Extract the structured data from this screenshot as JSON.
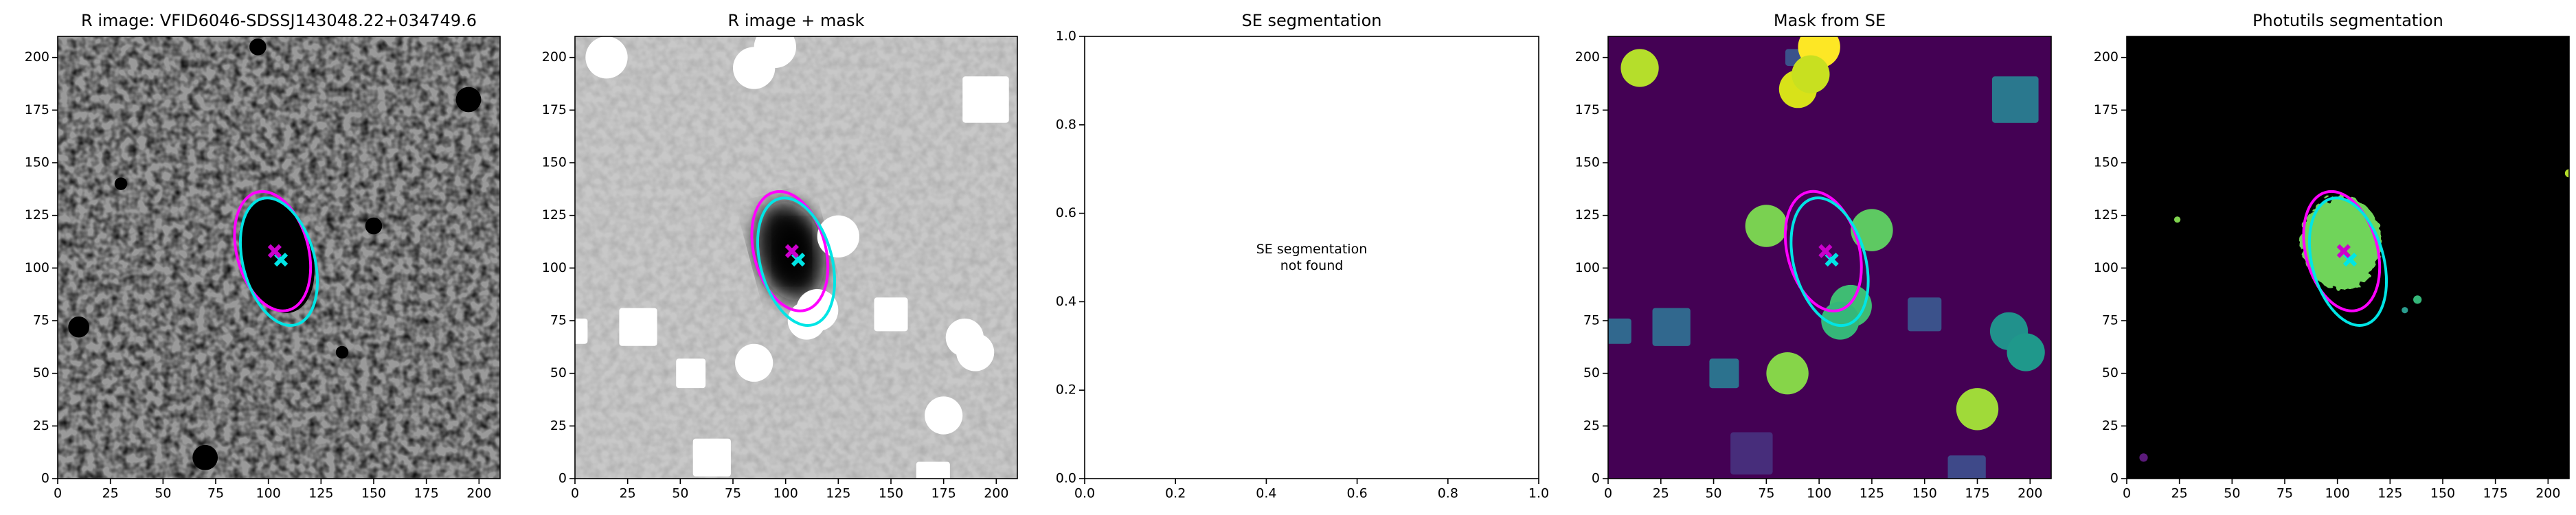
{
  "chart_data": [
    {
      "type": "image",
      "cmap": "gray",
      "title": "R image: VFID6046-SDSSJ143048.22+034749.6",
      "xlim": [
        0,
        210
      ],
      "ylim": [
        0,
        210
      ],
      "xticks": [
        0,
        25,
        50,
        75,
        100,
        125,
        150,
        175,
        200
      ],
      "yticks": [
        0,
        25,
        50,
        75,
        100,
        125,
        150,
        175,
        200
      ],
      "ellipses": [
        {
          "color": "#ff00ff",
          "x": 102,
          "y": 108,
          "width": 34,
          "height": 58,
          "angle": 15
        },
        {
          "color": "#00e5e5",
          "x": 105,
          "y": 103,
          "width": 34,
          "height": 62,
          "angle": 15
        }
      ],
      "markers": [
        {
          "color": "#00e5e5",
          "x": 106,
          "y": 104
        },
        {
          "color": "#cc00cc",
          "x": 103,
          "y": 108
        }
      ]
    },
    {
      "type": "image",
      "cmap": "gray_masked",
      "title": "R image + mask",
      "xlim": [
        0,
        210
      ],
      "ylim": [
        0,
        210
      ],
      "xticks": [
        0,
        25,
        50,
        75,
        100,
        125,
        150,
        175,
        200
      ],
      "yticks": [
        0,
        25,
        50,
        75,
        100,
        125,
        150,
        175,
        200
      ],
      "ellipses": [
        {
          "color": "#ff00ff",
          "x": 102,
          "y": 108,
          "width": 34,
          "height": 58,
          "angle": 15
        },
        {
          "color": "#00e5e5",
          "x": 105,
          "y": 103,
          "width": 34,
          "height": 62,
          "angle": 15
        }
      ],
      "markers": [
        {
          "color": "#00e5e5",
          "x": 106,
          "y": 104
        },
        {
          "color": "#cc00cc",
          "x": 103,
          "y": 108
        }
      ]
    },
    {
      "type": "empty",
      "title": "SE segmentation",
      "annotation": [
        "SE segmentation",
        "not found"
      ],
      "xlim": [
        0,
        1
      ],
      "ylim": [
        0,
        1
      ],
      "xticks": [
        {
          "value": 0,
          "label": "0.0"
        },
        0.2,
        0.4,
        0.6,
        0.8,
        {
          "value": 1,
          "label": "1.0"
        }
      ],
      "yticks": [
        {
          "value": 0,
          "label": "0.0"
        },
        0.2,
        0.4,
        0.6,
        0.8,
        {
          "value": 1,
          "label": "1.0"
        }
      ]
    },
    {
      "type": "image",
      "cmap": "viridis",
      "title": "Mask from SE",
      "xlim": [
        0,
        210
      ],
      "ylim": [
        0,
        210
      ],
      "xticks": [
        0,
        25,
        50,
        75,
        100,
        125,
        150,
        175,
        200
      ],
      "yticks": [
        0,
        25,
        50,
        75,
        100,
        125,
        150,
        175,
        200
      ],
      "ellipses": [
        {
          "color": "#ff00ff",
          "x": 102,
          "y": 108,
          "width": 34,
          "height": 58,
          "angle": 15
        },
        {
          "color": "#00e5e5",
          "x": 105,
          "y": 103,
          "width": 34,
          "height": 62,
          "angle": 15
        }
      ],
      "markers": [
        {
          "color": "#00e5e5",
          "x": 106,
          "y": 104
        },
        {
          "color": "#cc00cc",
          "x": 103,
          "y": 108
        }
      ]
    },
    {
      "type": "image",
      "cmap": "segmentation",
      "title": "Photutils segmentation",
      "xlim": [
        0,
        210
      ],
      "ylim": [
        0,
        210
      ],
      "xticks": [
        0,
        25,
        50,
        75,
        100,
        125,
        150,
        175,
        200
      ],
      "yticks": [
        0,
        25,
        50,
        75,
        100,
        125,
        150,
        175,
        200
      ],
      "ellipses": [
        {
          "color": "#ff00ff",
          "x": 102,
          "y": 108,
          "width": 34,
          "height": 58,
          "angle": 15
        },
        {
          "color": "#00e5e5",
          "x": 105,
          "y": 103,
          "width": 34,
          "height": 62,
          "angle": 15
        }
      ],
      "markers": [
        {
          "color": "#00e5e5",
          "x": 106,
          "y": 104
        },
        {
          "color": "#cc00cc",
          "x": 103,
          "y": 108
        }
      ]
    }
  ]
}
